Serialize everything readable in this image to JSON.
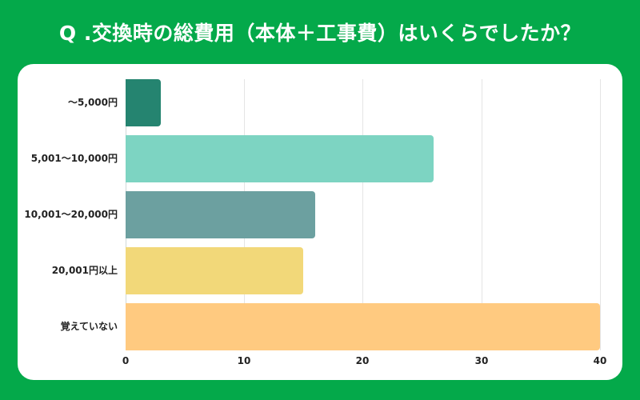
{
  "header": {
    "title": "Q .交換時の総費用（本体＋工事費）はいくらでしたか？"
  },
  "colors": {
    "background": "#04a94a",
    "card": "#ffffff"
  },
  "chart_data": {
    "type": "bar",
    "orientation": "horizontal",
    "title": "Q .交換時の総費用（本体＋工事費）はいくらでしたか？",
    "categories": [
      "～5,000円",
      "5,001～10,000円",
      "10,001～20,000円",
      "20,001円以上",
      "覚えていない"
    ],
    "values": [
      3,
      26,
      16,
      15,
      40
    ],
    "bar_colors": [
      "#258470",
      "#7dd4c2",
      "#6ca0a0",
      "#f2d879",
      "#ffca80"
    ],
    "xlabel": "",
    "ylabel": "",
    "xlim": [
      0,
      40
    ],
    "xticks": [
      0,
      10,
      20,
      30,
      40
    ],
    "grid": true,
    "legend": null
  },
  "ticks": [
    "0",
    "10",
    "20",
    "30",
    "40"
  ]
}
